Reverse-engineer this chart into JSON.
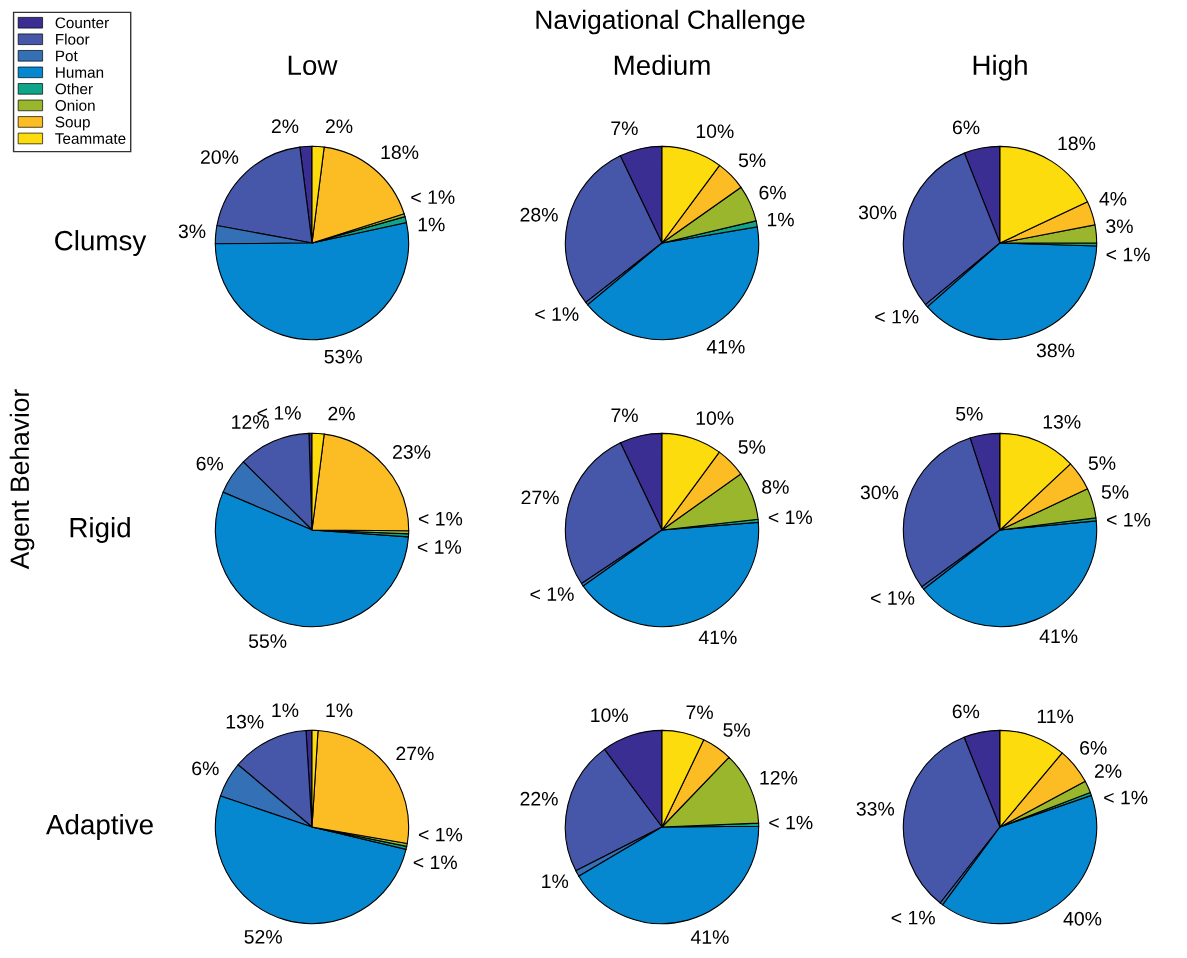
{
  "chart_data": [
    {
      "type": "pie",
      "title": "Low",
      "ylabel": "Clumsy",
      "legend": "top left",
      "annotations": [
        "Navigational Challenge",
        "Agent Behavior"
      ],
      "categories": [
        "Counter",
        "Floor",
        "Pot",
        "Human",
        "Other",
        "Onion",
        "Soup",
        "Teammate"
      ],
      "colors": [
        "#3a2e93",
        "#4656a8",
        "#3470b5",
        "#0588d0",
        "#10a58a",
        "#99b62d",
        "#fcbc24",
        "#fcdc0c"
      ],
      "values": [
        2,
        20,
        3,
        53,
        1,
        0.5,
        18,
        2
      ],
      "value_labels": [
        "2%",
        "20%",
        "3%",
        "53%",
        "1%",
        "< 1%",
        "18%",
        "2%"
      ]
    },
    {
      "type": "pie",
      "title": "Medium",
      "colors": [
        "#3a2e93",
        "#4656a8",
        "#3470b5",
        "#0588d0",
        "#10a58a",
        "#99b62d",
        "#fcbc24",
        "#fcdc0c"
      ],
      "values": [
        7,
        28,
        0.5,
        41,
        1,
        6,
        5,
        10
      ],
      "value_labels": [
        "7%",
        "28%",
        "< 1%",
        "41%",
        "1%",
        "6%",
        "5%",
        "10%"
      ]
    },
    {
      "type": "pie",
      "title": "High",
      "colors": [
        "#3a2e93",
        "#4656a8",
        "#3470b5",
        "#0588d0",
        "#10a58a",
        "#99b62d",
        "#fcbc24",
        "#fcdc0c"
      ],
      "values": [
        6,
        30,
        0.5,
        38,
        0.5,
        3,
        4,
        18
      ],
      "value_labels": [
        "6%",
        "30%",
        "< 1%",
        "38%",
        "< 1%",
        "3%",
        "4%",
        "18%"
      ]
    },
    {
      "type": "pie",
      "ylabel": "Rigid",
      "colors": [
        "#3a2e93",
        "#4656a8",
        "#3470b5",
        "#0588d0",
        "#10a58a",
        "#99b62d",
        "#fcbc24",
        "#fcdc0c"
      ],
      "values": [
        0.5,
        12,
        6,
        55,
        0.5,
        0.5,
        23,
        2
      ],
      "value_labels": [
        "< 1%",
        "12%",
        "6%",
        "55%",
        "< 1%",
        "< 1%",
        "23%",
        "2%"
      ]
    },
    {
      "type": "pie",
      "colors": [
        "#3a2e93",
        "#4656a8",
        "#3470b5",
        "#0588d0",
        "#10a58a",
        "#99b62d",
        "#fcbc24",
        "#fcdc0c"
      ],
      "values": [
        7,
        27,
        0.5,
        41,
        0.5,
        8,
        5,
        10
      ],
      "value_labels": [
        "7%",
        "27%",
        "< 1%",
        "41%",
        "< 1%",
        "8%",
        "5%",
        "10%"
      ]
    },
    {
      "type": "pie",
      "colors": [
        "#3a2e93",
        "#4656a8",
        "#3470b5",
        "#0588d0",
        "#10a58a",
        "#99b62d",
        "#fcbc24",
        "#fcdc0c"
      ],
      "values": [
        5,
        30,
        0.5,
        41,
        0.5,
        5,
        5,
        13
      ],
      "value_labels": [
        "5%",
        "30%",
        "< 1%",
        "41%",
        "< 1%",
        "5%",
        "5%",
        "13%"
      ]
    },
    {
      "type": "pie",
      "ylabel": "Adaptive",
      "colors": [
        "#3a2e93",
        "#4656a8",
        "#3470b5",
        "#0588d0",
        "#10a58a",
        "#99b62d",
        "#fcbc24",
        "#fcdc0c"
      ],
      "values": [
        1,
        13,
        6,
        52,
        0.5,
        0.5,
        27,
        1
      ],
      "value_labels": [
        "1%",
        "13%",
        "6%",
        "52%",
        "< 1%",
        "< 1%",
        "27%",
        "1%"
      ]
    },
    {
      "type": "pie",
      "colors": [
        "#3a2e93",
        "#4656a8",
        "#3470b5",
        "#0588d0",
        "#10a58a",
        "#99b62d",
        "#fcbc24",
        "#fcdc0c"
      ],
      "values": [
        10,
        22,
        1,
        41,
        0.5,
        12,
        5,
        7
      ],
      "value_labels": [
        "10%",
        "22%",
        "1%",
        "41%",
        "< 1%",
        "12%",
        "5%",
        "7%"
      ]
    },
    {
      "type": "pie",
      "colors": [
        "#3a2e93",
        "#4656a8",
        "#3470b5",
        "#0588d0",
        "#10a58a",
        "#99b62d",
        "#fcbc24",
        "#fcdc0c"
      ],
      "values": [
        6,
        33,
        0.5,
        40,
        0.5,
        2,
        6,
        11
      ],
      "value_labels": [
        "6%",
        "33%",
        "< 1%",
        "40%",
        "< 1%",
        "2%",
        "6%",
        "11%"
      ]
    }
  ]
}
